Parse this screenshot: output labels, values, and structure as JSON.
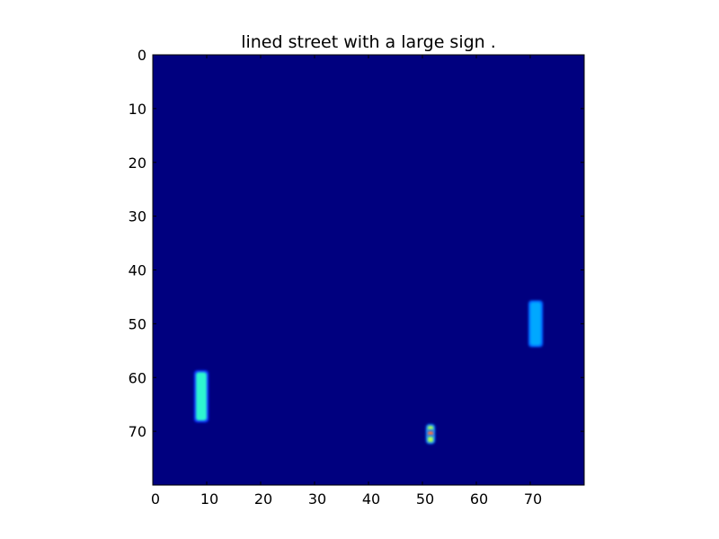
{
  "chart_data": {
    "type": "heatmap",
    "title": "lined street with a large sign .",
    "xlabel": "",
    "ylabel": "",
    "xlim": [
      0,
      80
    ],
    "ylim": [
      80,
      0
    ],
    "x_ticks": [
      "0",
      "10",
      "20",
      "30",
      "40",
      "50",
      "60",
      "70"
    ],
    "y_ticks": [
      "0",
      "10",
      "20",
      "30",
      "40",
      "50",
      "60",
      "70"
    ],
    "grid": false,
    "colormap": "jet",
    "background_color": "#00007f",
    "hotspots": [
      {
        "x": [
          8,
          9
        ],
        "y": [
          59,
          67
        ],
        "core_color": "#2ef5d0",
        "halo_color": "#1030ff"
      },
      {
        "x": [
          70,
          71
        ],
        "y": [
          46,
          53
        ],
        "core_color": "#00a8ff",
        "halo_color": "#0060ff"
      },
      {
        "x": [
          51,
          51
        ],
        "y": [
          69,
          69
        ],
        "core_color": "#b0ff50",
        "halo_color": "#1080ff"
      },
      {
        "x": [
          51,
          51
        ],
        "y": [
          70,
          70
        ],
        "core_color": "#ff7040",
        "halo_color": "#1080ff"
      },
      {
        "x": [
          51,
          51
        ],
        "y": [
          71,
          71
        ],
        "core_color": "#b0ff50",
        "halo_color": "#1080ff"
      }
    ]
  }
}
